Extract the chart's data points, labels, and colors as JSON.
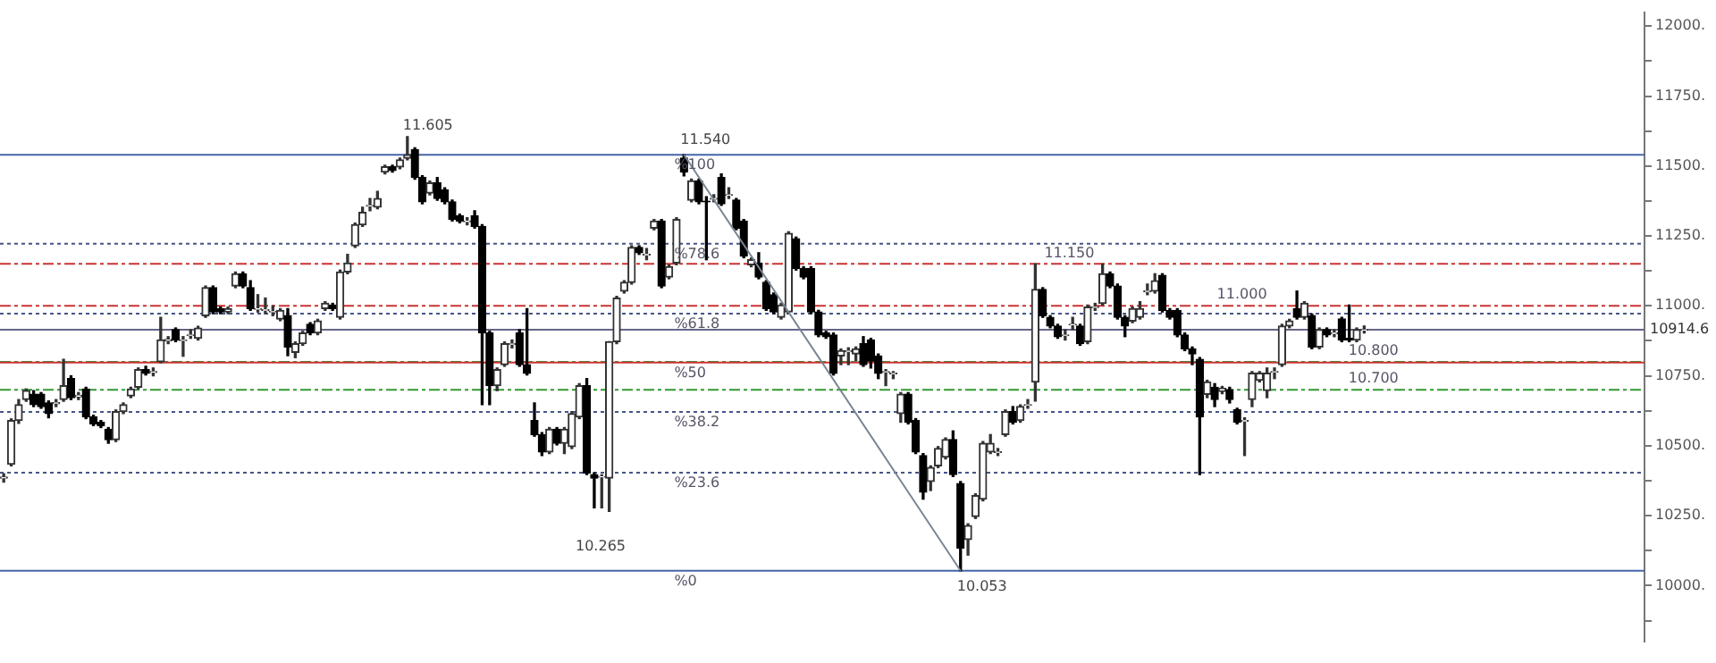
{
  "chart_data": {
    "type": "candlestick",
    "legend": false,
    "grid": false,
    "categories": [
      null,
      null,
      null,
      null,
      null,
      null,
      null,
      null,
      null,
      null,
      null,
      null,
      null,
      null,
      null,
      null,
      null,
      null,
      null,
      null,
      null,
      null,
      null,
      null,
      null,
      null,
      null,
      null,
      null,
      null,
      null,
      null,
      null,
      null,
      null,
      null,
      null,
      null,
      null,
      null,
      null,
      null,
      null,
      null,
      null,
      null,
      null,
      null,
      null,
      null,
      null,
      null,
      null,
      null,
      null,
      null,
      null,
      null,
      null,
      null,
      null,
      null,
      null,
      null,
      null,
      null,
      null,
      null,
      null,
      null,
      null,
      null,
      null,
      null,
      null,
      null,
      null,
      null,
      null,
      null,
      null,
      null,
      null,
      null,
      null,
      null,
      null,
      null,
      null,
      null,
      null,
      null,
      null,
      null,
      null,
      null,
      null,
      null,
      null,
      null,
      null,
      null,
      null,
      null,
      null,
      null,
      null,
      null,
      null,
      null,
      null,
      null,
      null,
      null,
      null,
      null,
      null,
      null,
      null,
      null,
      null,
      null,
      null,
      null,
      null,
      null,
      null,
      null,
      null,
      null,
      null,
      null,
      null,
      null,
      null,
      null,
      null,
      null,
      null,
      null,
      null,
      null,
      null,
      null,
      null,
      null,
      null,
      null,
      null,
      null,
      null,
      null,
      null,
      null,
      null,
      null,
      null,
      null,
      null,
      null,
      null,
      null,
      null,
      null,
      null,
      null,
      null,
      null,
      null,
      null,
      null,
      null,
      null,
      null,
      null,
      null,
      null,
      null,
      null,
      null,
      null,
      null,
      null,
      null,
      null,
      null,
      null,
      null,
      null,
      null,
      null,
      null,
      null,
      null,
      null,
      null,
      null,
      null,
      null,
      null,
      null,
      null,
      null,
      null,
      null,
      null,
      null,
      null,
      null,
      null,
      null,
      null,
      null,
      null,
      null,
      null,
      null,
      null,
      null,
      null
    ],
    "ohlc": [
      [
        10384,
        10400,
        10370,
        10388
      ],
      [
        10434,
        10596,
        10428,
        10590
      ],
      [
        10590,
        10665,
        10580,
        10647
      ],
      [
        10665,
        10703,
        10659,
        10697
      ],
      [
        10684,
        10697,
        10640,
        10647
      ],
      [
        10684,
        10690,
        10634,
        10640
      ],
      [
        10653,
        10660,
        10600,
        10615
      ],
      [
        10650,
        10665,
        10640,
        10655
      ],
      [
        10665,
        10809,
        10659,
        10715
      ],
      [
        10740,
        10750,
        10665,
        10672
      ],
      [
        10675,
        10690,
        10665,
        10680
      ],
      [
        10703,
        10709,
        10597,
        10603
      ],
      [
        10603,
        10609,
        10572,
        10578
      ],
      [
        10584,
        10590,
        10565,
        10572
      ],
      [
        10559,
        10565,
        10509,
        10522
      ],
      [
        10522,
        10628,
        10515,
        10622
      ],
      [
        10622,
        10653,
        10615,
        10647
      ],
      [
        10678,
        10709,
        10672,
        10703
      ],
      [
        10709,
        10778,
        10703,
        10772
      ],
      [
        10772,
        10784,
        10753,
        10759
      ],
      [
        10762,
        10778,
        10750,
        10765
      ],
      [
        10800,
        10959,
        10797,
        10878
      ],
      [
        10875,
        10890,
        10865,
        10880
      ],
      [
        10915,
        10921,
        10872,
        10878
      ],
      [
        10876,
        10890,
        10820,
        10878
      ],
      [
        10894,
        10915,
        10884,
        10896
      ],
      [
        10884,
        10927,
        10878,
        10921
      ],
      [
        10965,
        11071,
        10959,
        11065
      ],
      [
        11065,
        11071,
        10972,
        10978
      ],
      [
        10990,
        10996,
        10972,
        10978
      ],
      [
        10978,
        10996,
        10972,
        10990
      ],
      [
        11071,
        11121,
        11065,
        11115
      ],
      [
        11115,
        11121,
        11065,
        11071
      ],
      [
        11065,
        11090,
        10984,
        10990
      ],
      [
        10988,
        11040,
        10978,
        10990
      ],
      [
        10984,
        11028,
        10972,
        10986
      ],
      [
        10978,
        11000,
        10965,
        10980
      ],
      [
        10953,
        10990,
        10947,
        10984
      ],
      [
        10965,
        10990,
        10822,
        10853
      ],
      [
        10834,
        10871,
        10815,
        10865
      ],
      [
        10865,
        10909,
        10859,
        10903
      ],
      [
        10934,
        10940,
        10897,
        10903
      ],
      [
        10903,
        10952,
        10897,
        10946
      ],
      [
        10990,
        11015,
        10984,
        11009
      ],
      [
        11003,
        11009,
        10984,
        10990
      ],
      [
        10959,
        11128,
        10953,
        11121
      ],
      [
        11121,
        11184,
        11115,
        11153
      ],
      [
        11215,
        11296,
        11209,
        11290
      ],
      [
        11290,
        11353,
        11284,
        11334
      ],
      [
        11356,
        11384,
        11340,
        11359
      ],
      [
        11353,
        11409,
        11347,
        11384
      ],
      [
        11478,
        11503,
        11472,
        11497
      ],
      [
        11497,
        11503,
        11478,
        11484
      ],
      [
        11497,
        11528,
        11490,
        11522
      ],
      [
        11528,
        11605,
        11522,
        11540
      ],
      [
        11559,
        11565,
        11453,
        11459
      ],
      [
        11459,
        11465,
        11365,
        11372
      ],
      [
        11403,
        11446,
        11397,
        11440
      ],
      [
        11440,
        11459,
        11378,
        11384
      ],
      [
        11415,
        11422,
        11365,
        11372
      ],
      [
        11372,
        11378,
        11303,
        11309
      ],
      [
        11322,
        11328,
        11297,
        11303
      ],
      [
        11301,
        11315,
        11290,
        11303
      ],
      [
        11322,
        11340,
        11278,
        11284
      ],
      [
        11284,
        11290,
        10647,
        10903
      ],
      [
        10903,
        10909,
        10647,
        10715
      ],
      [
        10715,
        10778,
        10697,
        10772
      ],
      [
        10790,
        10871,
        10784,
        10865
      ],
      [
        10862,
        10878,
        10850,
        10865
      ],
      [
        10903,
        10915,
        10784,
        10790
      ],
      [
        10790,
        10990,
        10753,
        10759
      ],
      [
        10590,
        10653,
        10534,
        10540
      ],
      [
        10540,
        10547,
        10465,
        10478
      ],
      [
        10478,
        10565,
        10472,
        10559
      ],
      [
        10559,
        10565,
        10503,
        10509
      ],
      [
        10509,
        10565,
        10472,
        10559
      ],
      [
        10497,
        10622,
        10490,
        10615
      ],
      [
        10603,
        10722,
        10597,
        10715
      ],
      [
        10715,
        10740,
        10397,
        10403
      ],
      [
        10397,
        10403,
        10278,
        10384
      ],
      [
        10388,
        10396,
        10278,
        10390
      ],
      [
        10384,
        10872,
        10265,
        10872
      ],
      [
        10872,
        11034,
        10865,
        11028
      ],
      [
        11053,
        11090,
        11046,
        11084
      ],
      [
        11084,
        11215,
        11078,
        11209
      ],
      [
        11209,
        11215,
        11184,
        11190
      ],
      [
        11182,
        11205,
        11165,
        11184
      ],
      [
        11278,
        11309,
        11272,
        11303
      ],
      [
        11303,
        11309,
        11065,
        11071
      ],
      [
        11103,
        11146,
        11097,
        11140
      ],
      [
        11153,
        11315,
        11147,
        11309
      ],
      [
        11528,
        11540,
        11465,
        11478
      ],
      [
        11378,
        11453,
        11372,
        11447
      ],
      [
        11447,
        11453,
        11365,
        11372
      ],
      [
        11374,
        11390,
        11165,
        11372
      ],
      [
        11382,
        11397,
        11372,
        11384
      ],
      [
        11459,
        11472,
        11359,
        11365
      ],
      [
        11395,
        11422,
        11384,
        11397
      ],
      [
        11378,
        11384,
        11272,
        11278
      ],
      [
        11303,
        11309,
        11172,
        11178
      ],
      [
        11147,
        11171,
        11140,
        11165
      ],
      [
        11153,
        11190,
        11097,
        11103
      ],
      [
        11084,
        11090,
        10984,
        10990
      ],
      [
        11040,
        11046,
        10972,
        10978
      ],
      [
        10959,
        11009,
        10953,
        11003
      ],
      [
        10978,
        11265,
        10972,
        11259
      ],
      [
        11240,
        11246,
        11128,
        11134
      ],
      [
        11134,
        11140,
        11097,
        11103
      ],
      [
        11134,
        11140,
        10972,
        10978
      ],
      [
        10978,
        10984,
        10890,
        10896
      ],
      [
        10903,
        10909,
        10884,
        10890
      ],
      [
        10896,
        10903,
        10753,
        10759
      ],
      [
        10821,
        10846,
        10790,
        10840
      ],
      [
        10836,
        10850,
        10790,
        10840
      ],
      [
        10828,
        10853,
        10803,
        10846
      ],
      [
        10865,
        10890,
        10784,
        10790
      ],
      [
        10878,
        10884,
        10778,
        10803
      ],
      [
        10821,
        10828,
        10740,
        10759
      ],
      [
        10763,
        10772,
        10715,
        10765
      ],
      [
        10757,
        10765,
        10740,
        10759
      ],
      [
        10615,
        10690,
        10584,
        10684
      ],
      [
        10684,
        10690,
        10578,
        10584
      ],
      [
        10590,
        10597,
        10472,
        10478
      ],
      [
        10465,
        10472,
        10309,
        10334
      ],
      [
        10372,
        10428,
        10340,
        10422
      ],
      [
        10428,
        10497,
        10422,
        10490
      ],
      [
        10459,
        10528,
        10453,
        10522
      ],
      [
        10522,
        10553,
        10390,
        10397
      ],
      [
        10365,
        10372,
        10053,
        10134
      ],
      [
        10165,
        10221,
        10109,
        10215
      ],
      [
        10247,
        10328,
        10240,
        10322
      ],
      [
        10309,
        10515,
        10303,
        10509
      ],
      [
        10478,
        10540,
        10472,
        10509
      ],
      [
        10476,
        10490,
        10465,
        10478
      ],
      [
        10540,
        10628,
        10534,
        10622
      ],
      [
        10622,
        10640,
        10578,
        10584
      ],
      [
        10590,
        10646,
        10584,
        10640
      ],
      [
        10645,
        10665,
        10634,
        10647
      ],
      [
        10728,
        11150,
        10660,
        11059
      ],
      [
        11059,
        11065,
        10959,
        10965
      ],
      [
        10959,
        10965,
        10922,
        10928
      ],
      [
        10928,
        10934,
        10884,
        10890
      ],
      [
        10894,
        10915,
        10878,
        10896
      ],
      [
        10932,
        10959,
        10915,
        10934
      ],
      [
        10928,
        10934,
        10859,
        10865
      ],
      [
        10872,
        11003,
        10865,
        10996
      ],
      [
        10994,
        11009,
        10984,
        10996
      ],
      [
        11009,
        11150,
        11003,
        11115
      ],
      [
        11115,
        11121,
        11065,
        11071
      ],
      [
        11071,
        11078,
        10953,
        10959
      ],
      [
        10959,
        10965,
        10890,
        10928
      ],
      [
        10946,
        10996,
        10940,
        10990
      ],
      [
        10959,
        11015,
        10953,
        10990
      ],
      [
        11050,
        11078,
        11040,
        11053
      ],
      [
        11053,
        11115,
        11046,
        11090
      ],
      [
        11109,
        11115,
        10978,
        10984
      ],
      [
        10984,
        10990,
        10953,
        10959
      ],
      [
        10984,
        10990,
        10890,
        10896
      ],
      [
        10896,
        10903,
        10840,
        10846
      ],
      [
        10846,
        10853,
        10790,
        10828
      ],
      [
        10809,
        10815,
        10397,
        10603
      ],
      [
        10684,
        10734,
        10672,
        10728
      ],
      [
        10709,
        10722,
        10640,
        10665
      ],
      [
        10694,
        10712,
        10686,
        10706
      ],
      [
        10700,
        10709,
        10653,
        10665
      ],
      [
        10628,
        10634,
        10578,
        10584
      ],
      [
        10588,
        10600,
        10465,
        10590
      ],
      [
        10665,
        10765,
        10640,
        10759
      ],
      [
        10734,
        10765,
        10728,
        10759
      ],
      [
        10697,
        10778,
        10672,
        10759
      ],
      [
        10763,
        10778,
        10740,
        10765
      ],
      [
        10790,
        10934,
        10784,
        10928
      ],
      [
        10928,
        10952,
        10922,
        10946
      ],
      [
        10990,
        11053,
        10953,
        10959
      ],
      [
        10959,
        11015,
        10953,
        11009
      ],
      [
        10965,
        10971,
        10847,
        10853
      ],
      [
        10853,
        10921,
        10847,
        10915
      ],
      [
        10915,
        10921,
        10890,
        10896
      ],
      [
        10901,
        10915,
        10890,
        10903
      ],
      [
        10953,
        10959,
        10872,
        10878
      ],
      [
        10884,
        11003,
        10872,
        10878
      ],
      [
        10878,
        10921,
        10872,
        10915
      ],
      [
        10913,
        10928,
        10903,
        10914.6
      ],
      null,
      null,
      null,
      null,
      null,
      null,
      null,
      null,
      null,
      null,
      null,
      null,
      null,
      null,
      null,
      null,
      null,
      null,
      null,
      null,
      null,
      null,
      null,
      null,
      null,
      null,
      null,
      null,
      null,
      null,
      null,
      null,
      null,
      null,
      null,
      null,
      null
    ],
    "series": [
      {
        "type": "line",
        "color": "#7a8494",
        "values": [
          null,
          null,
          null,
          null,
          null,
          null,
          null,
          null,
          null,
          null,
          null,
          null,
          null,
          null,
          null,
          null,
          null,
          null,
          null,
          null,
          null,
          null,
          null,
          null,
          null,
          null,
          null,
          null,
          null,
          null,
          null,
          null,
          null,
          null,
          null,
          null,
          null,
          null,
          null,
          null,
          null,
          null,
          null,
          null,
          null,
          null,
          null,
          null,
          null,
          null,
          null,
          null,
          null,
          null,
          null,
          null,
          null,
          null,
          null,
          null,
          null,
          null,
          null,
          null,
          null,
          null,
          null,
          null,
          null,
          null,
          null,
          null,
          null,
          null,
          null,
          null,
          null,
          null,
          null,
          null,
          null,
          null,
          null,
          null,
          null,
          null,
          null,
          null,
          null,
          null,
          null,
          11540,
          null,
          null,
          null,
          null,
          null,
          null,
          null,
          null,
          null,
          null,
          null,
          null,
          null,
          null,
          null,
          null,
          null,
          null,
          null,
          null,
          null,
          null,
          null,
          null,
          null,
          null,
          null,
          null,
          null,
          null,
          null,
          null,
          null,
          null,
          null,
          null,
          10053,
          null,
          null,
          null,
          null,
          null,
          null,
          null,
          null,
          null,
          null,
          null,
          null,
          null,
          null,
          null,
          null,
          null,
          null,
          null,
          null,
          null,
          null,
          null,
          null,
          null,
          null,
          null,
          null,
          null,
          null,
          null,
          null,
          null,
          null,
          null,
          null,
          null,
          null,
          null,
          null,
          null,
          null,
          null,
          null,
          null,
          null,
          null,
          null,
          null,
          null,
          null,
          null,
          null,
          null,
          null,
          null,
          null,
          null,
          null,
          null,
          null,
          null,
          null,
          null,
          null,
          null,
          null,
          null,
          null,
          null,
          null,
          null,
          null,
          null,
          null,
          null,
          null,
          null,
          null,
          null,
          null,
          null,
          null,
          null,
          null,
          null,
          null,
          null,
          null,
          null,
          null
        ]
      }
    ],
    "ylim": [
      9800,
      12050
    ],
    "yticks": [
      {
        "value": 9875,
        "label": null
      },
      {
        "value": 10000,
        "label": "10000."
      },
      {
        "value": 10125,
        "label": null
      },
      {
        "value": 10250,
        "label": "10250."
      },
      {
        "value": 10375,
        "label": null
      },
      {
        "value": 10500,
        "label": "10500."
      },
      {
        "value": 10625,
        "label": null
      },
      {
        "value": 10750,
        "label": "10750."
      },
      {
        "value": 10875,
        "label": null
      },
      {
        "value": 11000,
        "label": "11000."
      },
      {
        "value": 11125,
        "label": null
      },
      {
        "value": 11250,
        "label": "11250."
      },
      {
        "value": 11375,
        "label": null
      },
      {
        "value": 11500,
        "label": "11500."
      },
      {
        "value": 11625,
        "label": null
      },
      {
        "value": 11750,
        "label": "11750."
      },
      {
        "value": 11875,
        "label": null
      },
      {
        "value": 12000,
        "label": "12000."
      }
    ],
    "ref_lines": [
      {
        "axis": "y",
        "value": 10800,
        "color": "#339933",
        "line_style": "dashed"
      },
      {
        "axis": "y",
        "value": 10700,
        "color": "#339933",
        "line_style": "dashed"
      },
      {
        "axis": "y",
        "value": 11150,
        "color": "#cc3333",
        "line_style": "dashed"
      },
      {
        "axis": "y",
        "value": 11000,
        "color": "#cc3333",
        "line_style": "dashed"
      },
      {
        "axis": "y",
        "value": 10053,
        "color": "#4466aa",
        "line_style": "solid"
      },
      {
        "axis": "y",
        "value": 10404,
        "color": "#445588",
        "line_style": "dotted"
      },
      {
        "axis": "y",
        "value": 10621,
        "color": "#445588",
        "line_style": "dotted"
      },
      {
        "axis": "y",
        "value": 10797,
        "color": "#cc3333",
        "line_style": "solid"
      },
      {
        "axis": "y",
        "value": 10972,
        "color": "#445588",
        "line_style": "dotted"
      },
      {
        "axis": "y",
        "value": 11222,
        "color": "#445588",
        "line_style": "dotted"
      },
      {
        "axis": "y",
        "value": 11540,
        "color": "#4466aa",
        "line_style": "solid"
      },
      {
        "axis": "y",
        "value": 10914.6,
        "label": "10914.6",
        "color": "#666688",
        "line_style": "solid"
      }
    ],
    "annotations": [
      "11.605",
      "10.265",
      {
        "text": "11.540",
        "y": 11540
      },
      {
        "text": "10.053",
        "y": 10053
      },
      {
        "text": "10.800",
        "y": 10800
      },
      {
        "text": "10.700",
        "y": 10700
      },
      {
        "text": "11.150",
        "y": 11150
      },
      {
        "text": "11.000",
        "y": 11000
      },
      {
        "text": "%0",
        "y": 10053
      },
      {
        "text": "%23.6",
        "y": 10404
      },
      {
        "text": "%38.2",
        "y": 10621
      },
      {
        "text": "%50",
        "y": 10797
      },
      {
        "text": "%61.8",
        "y": 10972
      },
      {
        "text": "%78.6",
        "y": 11222
      },
      {
        "text": "%100",
        "y": 11540
      }
    ]
  }
}
